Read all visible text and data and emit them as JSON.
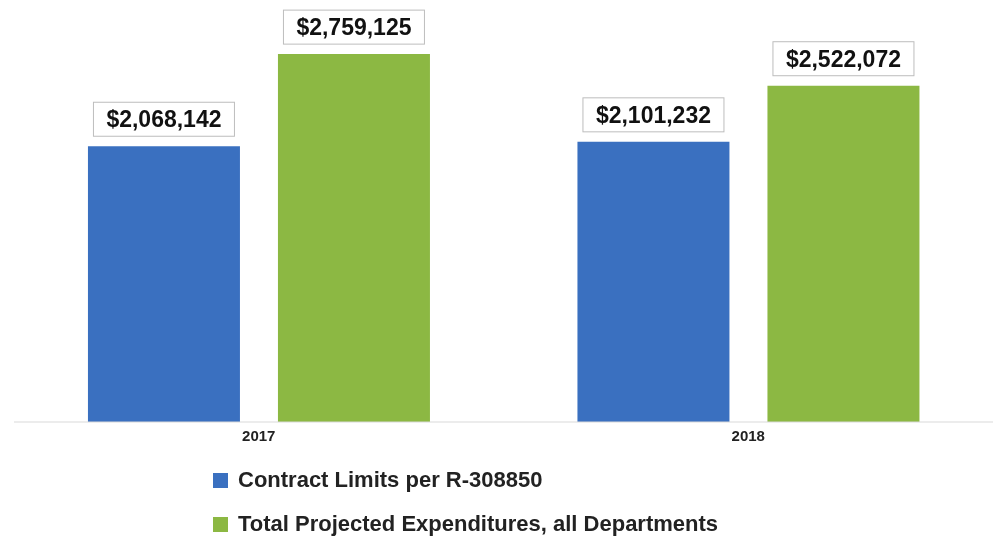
{
  "chart_data": {
    "type": "bar",
    "categories": [
      "2017",
      "2018"
    ],
    "series": [
      {
        "name": "Contract Limits per R-308850",
        "color": "#3a70c0",
        "values": [
          2068142,
          2101232
        ],
        "value_labels": [
          "$2,068,142",
          "$2,101,232"
        ]
      },
      {
        "name": "Total Projected Expenditures, all Departments",
        "color": "#8cb843",
        "values": [
          2759125,
          2522072
        ],
        "value_labels": [
          "$2,759,125",
          "$2,522,072"
        ]
      }
    ],
    "tick_labels": "x",
    "legend": "bottom"
  }
}
